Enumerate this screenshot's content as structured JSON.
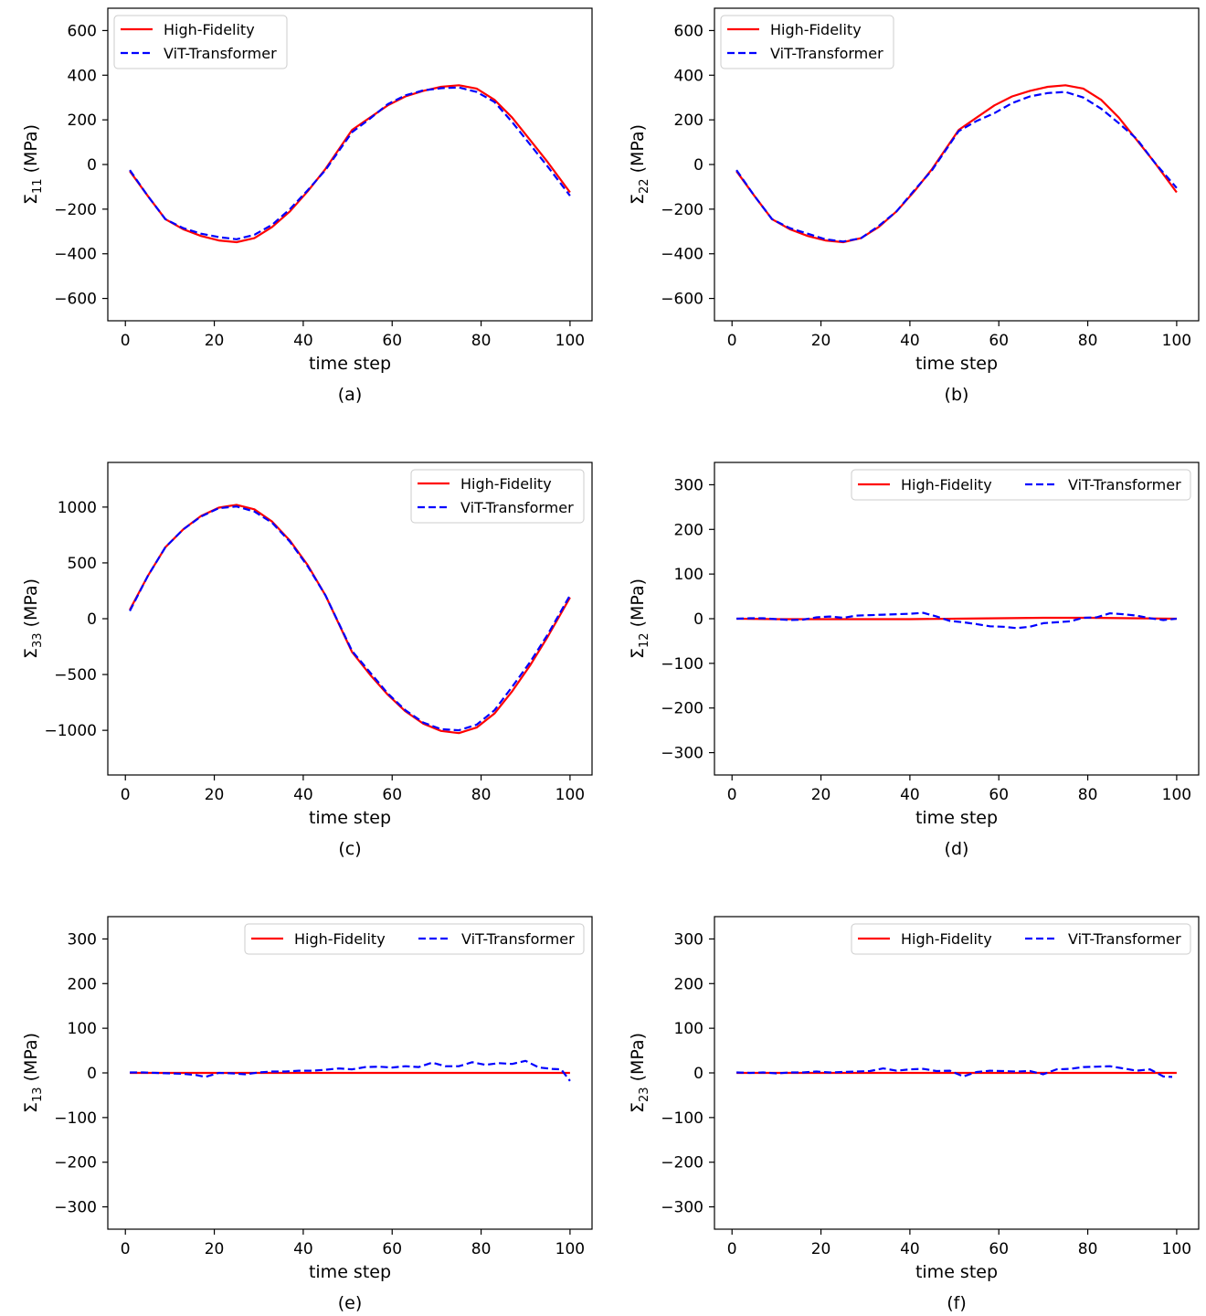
{
  "legend": {
    "hf": "High-Fidelity",
    "vit": "ViT-Transformer"
  },
  "colors": {
    "hf": "#ff0000",
    "vit": "#0000ff",
    "axis": "#000000"
  },
  "chart_data": [
    {
      "type": "line",
      "caption": "(a)",
      "xlabel": "time step",
      "ylabel_symbol": "Σ",
      "ylabel_sub": "11",
      "ylabel_unit": "(MPa)",
      "xlim": [
        -3.95,
        104.95
      ],
      "ylim": [
        -700,
        700
      ],
      "xticks": [
        0,
        20,
        40,
        60,
        80,
        100
      ],
      "yticks": [
        -600,
        -400,
        -200,
        0,
        200,
        400,
        600
      ],
      "legend_position": "top-left",
      "legend_layout": "stacked",
      "series": [
        {
          "name": "High-Fidelity",
          "style": "solid",
          "x": [
            1,
            5,
            9,
            13,
            17,
            21,
            25,
            29,
            33,
            37,
            41,
            45,
            51,
            55,
            59,
            63,
            67,
            71,
            75,
            79,
            83,
            87,
            91,
            95,
            100
          ],
          "y": [
            -30,
            -140,
            -245,
            -290,
            -320,
            -340,
            -348,
            -330,
            -280,
            -210,
            -120,
            -20,
            155,
            210,
            265,
            305,
            330,
            348,
            355,
            340,
            290,
            210,
            110,
            10,
            -125
          ]
        },
        {
          "name": "ViT-Transformer",
          "style": "dashed",
          "x": [
            1,
            5,
            9,
            13,
            17,
            21,
            25,
            29,
            33,
            37,
            41,
            45,
            51,
            55,
            59,
            63,
            67,
            71,
            75,
            79,
            83,
            87,
            91,
            95,
            100
          ],
          "y": [
            -25,
            -140,
            -245,
            -285,
            -310,
            -325,
            -335,
            -315,
            -270,
            -200,
            -115,
            -25,
            145,
            205,
            270,
            310,
            332,
            342,
            345,
            325,
            280,
            190,
            90,
            -10,
            -140
          ]
        }
      ]
    },
    {
      "type": "line",
      "caption": "(b)",
      "xlabel": "time step",
      "ylabel_symbol": "Σ",
      "ylabel_sub": "22",
      "ylabel_unit": "(MPa)",
      "xlim": [
        -3.95,
        104.95
      ],
      "ylim": [
        -700,
        700
      ],
      "xticks": [
        0,
        20,
        40,
        60,
        80,
        100
      ],
      "yticks": [
        -600,
        -400,
        -200,
        0,
        200,
        400,
        600
      ],
      "legend_position": "top-left",
      "legend_layout": "stacked",
      "series": [
        {
          "name": "High-Fidelity",
          "style": "solid",
          "x": [
            1,
            5,
            9,
            13,
            17,
            21,
            25,
            29,
            33,
            37,
            41,
            45,
            51,
            55,
            59,
            63,
            67,
            71,
            75,
            79,
            83,
            87,
            91,
            95,
            100
          ],
          "y": [
            -30,
            -140,
            -245,
            -290,
            -320,
            -340,
            -348,
            -330,
            -280,
            -210,
            -120,
            -20,
            155,
            210,
            265,
            305,
            330,
            348,
            355,
            340,
            290,
            210,
            110,
            10,
            -125
          ]
        },
        {
          "name": "ViT-Transformer",
          "style": "dashed",
          "x": [
            1,
            5,
            9,
            13,
            17,
            21,
            25,
            29,
            33,
            37,
            41,
            45,
            51,
            55,
            59,
            63,
            67,
            71,
            75,
            79,
            83,
            87,
            91,
            95,
            100
          ],
          "y": [
            -25,
            -140,
            -245,
            -285,
            -310,
            -335,
            -345,
            -330,
            -275,
            -210,
            -115,
            -25,
            150,
            195,
            230,
            275,
            305,
            320,
            325,
            300,
            250,
            185,
            115,
            10,
            -105
          ]
        }
      ]
    },
    {
      "type": "line",
      "caption": "(c)",
      "xlabel": "time step",
      "ylabel_symbol": "Σ",
      "ylabel_sub": "33",
      "ylabel_unit": "(MPa)",
      "xlim": [
        -3.95,
        104.95
      ],
      "ylim": [
        -1400,
        1400
      ],
      "xticks": [
        0,
        20,
        40,
        60,
        80,
        100
      ],
      "yticks": [
        -1000,
        -500,
        0,
        500,
        1000
      ],
      "legend_position": "top-right",
      "legend_layout": "stacked",
      "series": [
        {
          "name": "High-Fidelity",
          "style": "solid",
          "x": [
            1,
            5,
            9,
            13,
            17,
            21,
            25,
            29,
            33,
            37,
            41,
            45,
            51,
            55,
            59,
            63,
            67,
            71,
            75,
            79,
            83,
            87,
            91,
            95,
            100
          ],
          "y": [
            80,
            380,
            640,
            800,
            920,
            995,
            1020,
            980,
            870,
            700,
            480,
            210,
            -300,
            -500,
            -680,
            -830,
            -940,
            -1005,
            -1025,
            -975,
            -850,
            -650,
            -420,
            -160,
            190
          ]
        },
        {
          "name": "ViT-Transformer",
          "style": "dashed",
          "x": [
            1,
            5,
            9,
            13,
            17,
            21,
            25,
            29,
            33,
            37,
            41,
            45,
            51,
            55,
            59,
            63,
            67,
            71,
            75,
            79,
            83,
            87,
            91,
            95,
            100
          ],
          "y": [
            70,
            380,
            640,
            800,
            915,
            990,
            1005,
            960,
            860,
            690,
            470,
            210,
            -290,
            -480,
            -670,
            -820,
            -930,
            -990,
            -1000,
            -950,
            -820,
            -610,
            -390,
            -140,
            210
          ]
        }
      ]
    },
    {
      "type": "line",
      "caption": "(d)",
      "xlabel": "time step",
      "ylabel_symbol": "Σ",
      "ylabel_sub": "12",
      "ylabel_unit": "(MPa)",
      "xlim": [
        -3.95,
        104.95
      ],
      "ylim": [
        -350,
        350
      ],
      "xticks": [
        0,
        20,
        40,
        60,
        80,
        100
      ],
      "yticks": [
        -300,
        -200,
        -100,
        0,
        100,
        200,
        300
      ],
      "legend_position": "top-right",
      "legend_layout": "row",
      "series": [
        {
          "name": "High-Fidelity",
          "style": "solid",
          "x": [
            1,
            10,
            20,
            30,
            40,
            50,
            60,
            70,
            80,
            90,
            100
          ],
          "y": [
            0,
            -1,
            -1,
            -1,
            -1,
            0,
            1,
            2,
            2,
            1,
            0
          ]
        },
        {
          "name": "ViT-Transformer",
          "style": "dashed",
          "x": [
            1,
            4,
            7,
            10,
            13,
            16,
            19,
            22,
            25,
            28,
            31,
            34,
            37,
            40,
            43,
            46,
            49,
            52,
            55,
            58,
            61,
            64,
            67,
            70,
            73,
            76,
            79,
            82,
            85,
            88,
            91,
            94,
            97,
            100
          ],
          "y": [
            0,
            1,
            1,
            -1,
            -3,
            -2,
            3,
            5,
            2,
            7,
            8,
            9,
            10,
            11,
            13,
            5,
            -5,
            -8,
            -12,
            -17,
            -18,
            -21,
            -18,
            -10,
            -8,
            -6,
            2,
            3,
            12,
            10,
            7,
            1,
            -3,
            0
          ]
        }
      ]
    },
    {
      "type": "line",
      "caption": "(e)",
      "xlabel": "time step",
      "ylabel_symbol": "Σ",
      "ylabel_sub": "13",
      "ylabel_unit": "(MPa)",
      "xlim": [
        -3.95,
        104.95
      ],
      "ylim": [
        -350,
        350
      ],
      "xticks": [
        0,
        20,
        40,
        60,
        80,
        100
      ],
      "yticks": [
        -300,
        -200,
        -100,
        0,
        100,
        200,
        300
      ],
      "legend_position": "top-right",
      "legend_layout": "row",
      "series": [
        {
          "name": "High-Fidelity",
          "style": "solid",
          "x": [
            1,
            100
          ],
          "y": [
            0,
            0
          ]
        },
        {
          "name": "ViT-Transformer",
          "style": "dashed",
          "x": [
            1,
            4,
            7,
            10,
            13,
            16,
            18,
            21,
            24,
            27,
            30,
            33,
            36,
            39,
            42,
            45,
            48,
            51,
            54,
            57,
            60,
            63,
            66,
            69,
            72,
            75,
            78,
            81,
            84,
            87,
            90,
            93,
            96,
            98,
            100
          ],
          "y": [
            1,
            1,
            0,
            -1,
            -2,
            -5,
            -9,
            0,
            -1,
            -3,
            1,
            3,
            3,
            5,
            5,
            7,
            10,
            8,
            13,
            14,
            12,
            15,
            13,
            23,
            15,
            15,
            24,
            18,
            22,
            20,
            27,
            12,
            9,
            8,
            -18
          ]
        }
      ]
    },
    {
      "type": "line",
      "caption": "(f)",
      "xlabel": "time step",
      "ylabel_symbol": "Σ",
      "ylabel_sub": "23",
      "ylabel_unit": "(MPa)",
      "xlim": [
        -3.95,
        104.95
      ],
      "ylim": [
        -350,
        350
      ],
      "xticks": [
        0,
        20,
        40,
        60,
        80,
        100
      ],
      "yticks": [
        -300,
        -200,
        -100,
        0,
        100,
        200,
        300
      ],
      "legend_position": "top-right",
      "legend_layout": "row",
      "series": [
        {
          "name": "High-Fidelity",
          "style": "solid",
          "x": [
            1,
            100
          ],
          "y": [
            0,
            0
          ]
        },
        {
          "name": "ViT-Transformer",
          "style": "dashed",
          "x": [
            1,
            4,
            7,
            10,
            13,
            16,
            19,
            22,
            25,
            28,
            31,
            34,
            37,
            40,
            43,
            46,
            49,
            52,
            55,
            58,
            61,
            64,
            67,
            70,
            73,
            76,
            79,
            82,
            85,
            88,
            91,
            94,
            97,
            99
          ],
          "y": [
            1,
            0,
            1,
            -1,
            1,
            1,
            3,
            1,
            2,
            3,
            4,
            10,
            5,
            8,
            9,
            4,
            5,
            -8,
            2,
            5,
            4,
            3,
            4,
            -3,
            8,
            9,
            13,
            14,
            15,
            10,
            5,
            8,
            -8,
            -9
          ]
        }
      ]
    }
  ]
}
